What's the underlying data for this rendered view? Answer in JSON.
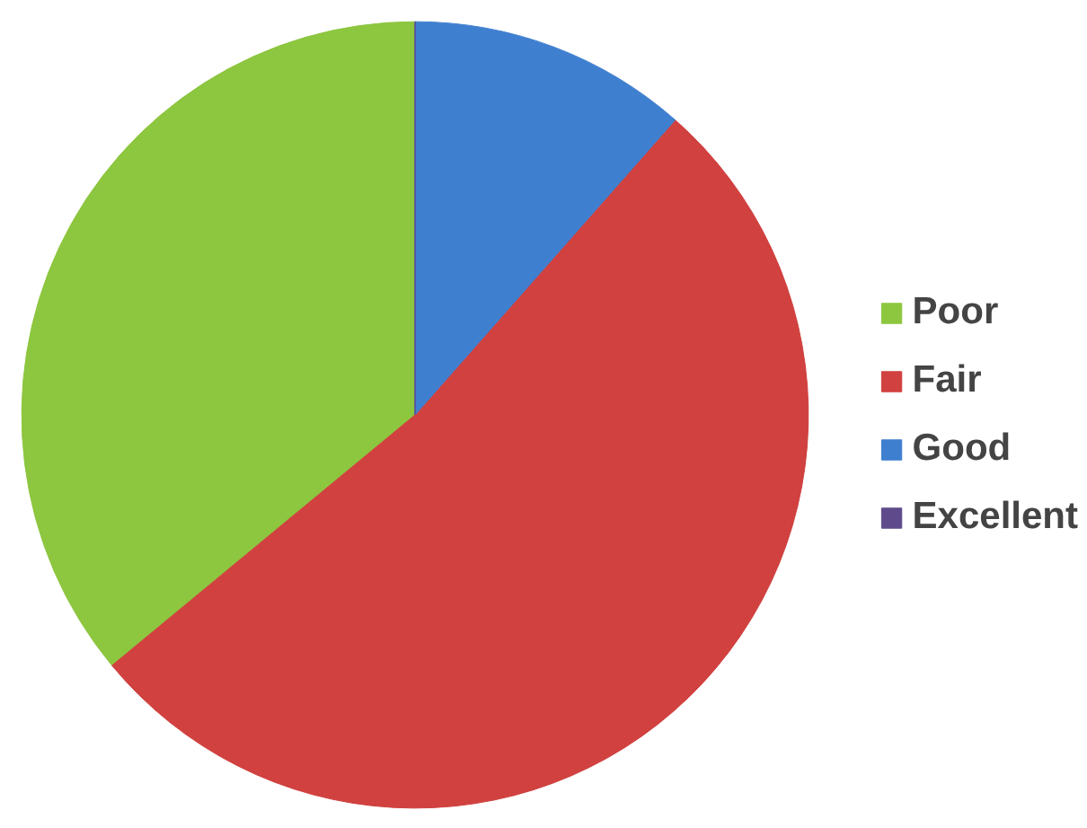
{
  "chart_data": {
    "type": "pie",
    "categories": [
      "Poor",
      "Fair",
      "Good",
      "Excellent"
    ],
    "values": [
      36,
      52.5,
      11.5,
      0
    ],
    "colors": [
      "#8dc63f",
      "#d0413f",
      "#3f7fd0",
      "#5f4b8b"
    ],
    "legend": "right"
  }
}
